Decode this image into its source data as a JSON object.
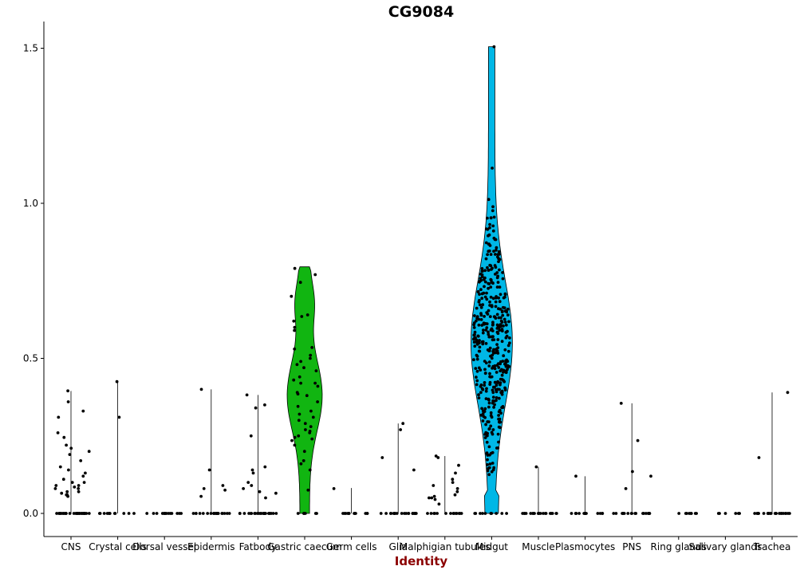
{
  "chart_data": {
    "type": "violin",
    "title": "CG9084",
    "xlabel": "Identity",
    "ylabel": "",
    "ylim": [
      -0.075,
      1.58
    ],
    "yticks": [
      "0.0",
      "0.5",
      "1.0",
      "1.5"
    ],
    "xlabel_color": "#8B0000",
    "categories": [
      "CNS",
      "Crystal cells",
      "Dorsal vessel",
      "Epidermis",
      "Fatbody",
      "Gastric caecum",
      "Germ cells",
      "Glia",
      "Malphigian tubules",
      "Midgut",
      "Muscle",
      "Plasmocytes",
      "PNS",
      "Ring glands",
      "Salivary glands",
      "Trachea"
    ],
    "max_values": [
      0.395,
      0.425,
      0.0,
      0.4,
      0.382,
      0.795,
      0.082,
      0.29,
      0.185,
      1.505,
      0.15,
      0.12,
      0.355,
      0.0,
      0.0,
      0.39
    ],
    "fill_colors": [
      "#ffffff",
      "#ffffff",
      "#ffffff",
      "#ffffff",
      "#ffffff",
      "#11b511",
      "#ffffff",
      "#ffffff",
      "#ffffff",
      "#00b7e6",
      "#ffffff",
      "#ffffff",
      "#ffffff",
      "#ffffff",
      "#ffffff",
      "#ffffff"
    ],
    "nonzero_points": [
      [
        0.395,
        0.36,
        0.33,
        0.31,
        0.26,
        0.245,
        0.22,
        0.21,
        0.2,
        0.19,
        0.17,
        0.15,
        0.14,
        0.13,
        0.12,
        0.11,
        0.1,
        0.1,
        0.09,
        0.09,
        0.085,
        0.08,
        0.08,
        0.07,
        0.07,
        0.065,
        0.06,
        0.06,
        0.055
      ],
      [
        0.425,
        0.31
      ],
      [],
      [
        0.4,
        0.14,
        0.09,
        0.08,
        0.075,
        0.055
      ],
      [
        0.382,
        0.35,
        0.34,
        0.25,
        0.15,
        0.14,
        0.13,
        0.1,
        0.09,
        0.08,
        0.07,
        0.065,
        0.05
      ],
      [
        0.79,
        0.77,
        0.745,
        0.7,
        0.64,
        0.635,
        0.62,
        0.6,
        0.59,
        0.53,
        0.535,
        0.51,
        0.5,
        0.49,
        0.48,
        0.47,
        0.46,
        0.44,
        0.43,
        0.42,
        0.42,
        0.41,
        0.39,
        0.385,
        0.38,
        0.36,
        0.345,
        0.33,
        0.32,
        0.31,
        0.3,
        0.29,
        0.28,
        0.27,
        0.265,
        0.26,
        0.25,
        0.245,
        0.24,
        0.235,
        0.22,
        0.2,
        0.17,
        0.16,
        0.14,
        0.075
      ],
      [
        0.08
      ],
      [
        0.29,
        0.27,
        0.18,
        0.14
      ],
      [
        0.185,
        0.18,
        0.155,
        0.13,
        0.11,
        0.1,
        0.09,
        0.08,
        0.07,
        0.06,
        0.055,
        0.05,
        0.05,
        0.045,
        0.03
      ],
      [],
      [
        0.15
      ],
      [
        0.12
      ],
      [
        0.355,
        0.235,
        0.135,
        0.12,
        0.08
      ],
      [],
      [],
      [
        0.39,
        0.18
      ]
    ],
    "zero_counts": [
      28,
      12,
      14,
      20,
      24,
      6,
      12,
      20,
      14,
      10,
      20,
      14,
      18,
      8,
      6,
      22
    ],
    "midgut_points": 420,
    "midgut_max": 1.505,
    "midgut_min": 0.125
  }
}
